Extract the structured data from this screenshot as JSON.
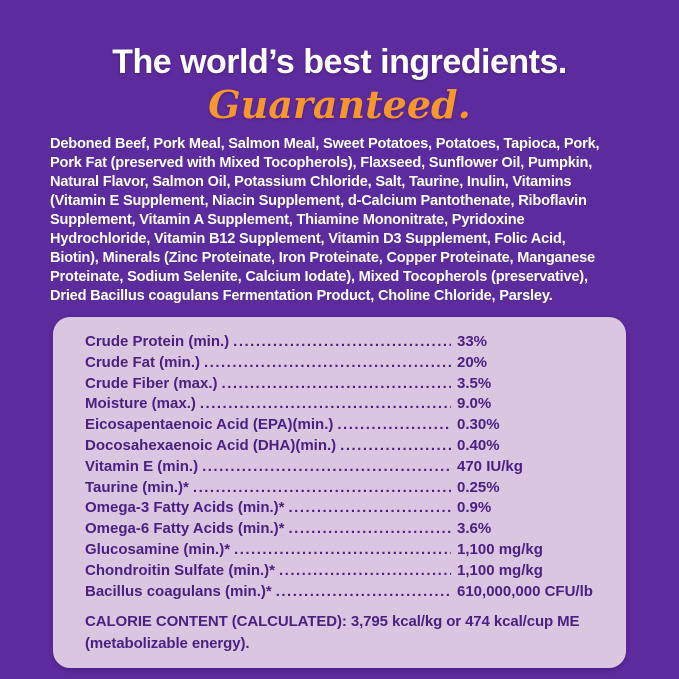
{
  "colors": {
    "background_purple": "#5c2b9d",
    "panel_lavender": "#dbc6e2",
    "text_dark_purple": "#4c2083",
    "accent_orange": "#f6962d",
    "text_white": "#ffffff"
  },
  "header": {
    "title": "The world’s best ingredients.",
    "subtitle": "Guaranteed."
  },
  "ingredients": {
    "text": "Deboned Beef, Pork Meal, Salmon Meal, Sweet Potatoes, Potatoes, Tapioca, Pork,\nPork Fat (preserved with Mixed Tocopherols), Flaxseed, Sunflower Oil, Pumpkin,\nNatural Flavor, Salmon Oil, Potassium Chloride, Salt, Taurine, Inulin, Vitamins\n(Vitamin E Supplement, Niacin Supplement, d-Calcium Pantothenate, Riboflavin\nSupplement, Vitamin A Supplement, Thiamine Mononitrate, Pyridoxine\nHydrochloride, Vitamin B12 Supplement, Vitamin D3 Supplement, Folic Acid,\nBiotin), Minerals (Zinc Proteinate, Iron Proteinate, Copper Proteinate, Manganese\nProteinate, Sodium Selenite, Calcium Iodate), Mixed Tocopherols (preservative),\nDried Bacillus coagulans Fermentation Product, Choline Chloride, Parsley."
  },
  "analysis": {
    "rows": [
      {
        "label": "Crude Protein (min.)",
        "value": "33%"
      },
      {
        "label": "Crude Fat (min.)",
        "value": "20%"
      },
      {
        "label": "Crude Fiber (max.)",
        "value": "3.5%"
      },
      {
        "label": "Moisture (max.)",
        "value": "9.0%"
      },
      {
        "label": "Eicosapentaenoic Acid (EPA)(min.)",
        "value": "0.30%"
      },
      {
        "label": "Docosahexaenoic Acid (DHA)(min.)",
        "value": "0.40%"
      },
      {
        "label": "Vitamin E (min.)",
        "value": "470 IU/kg"
      },
      {
        "label": "Taurine (min.)*",
        "value": "0.25%"
      },
      {
        "label": "Omega-3 Fatty Acids (min.)*",
        "value": "0.9%"
      },
      {
        "label": "Omega-6 Fatty Acids (min.)*",
        "value": "3.6%"
      },
      {
        "label": "Glucosamine (min.)*",
        "value": "1,100 mg/kg"
      },
      {
        "label": "Chondroitin Sulfate (min.)*",
        "value": "1,100 mg/kg"
      },
      {
        "label": "Bacillus coagulans (min.)*",
        "value": "610,000,000 CFU/lb"
      }
    ],
    "calorie_line1": "CALORIE CONTENT (CALCULATED): 3,795 kcal/kg or 474 kcal/cup ME",
    "calorie_line2": "(metabolizable energy)."
  }
}
